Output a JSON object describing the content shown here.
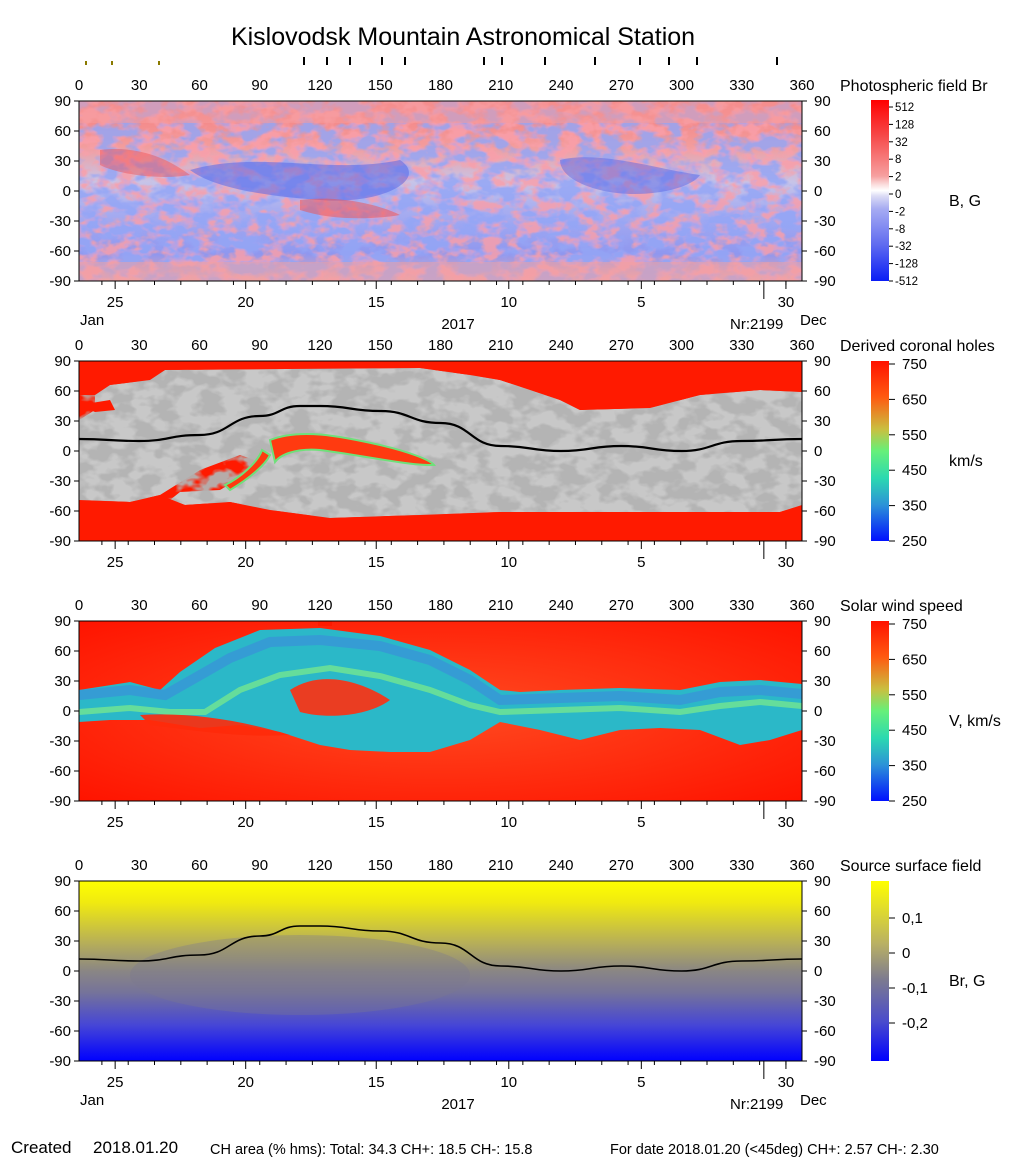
{
  "title": "Kislovodsk Mountain Astronomical Station",
  "footer": {
    "created_label": "Created",
    "created_date": "2018.01.20",
    "ch_area": "CH area (% hms): Total: 34.3 CH+: 18.5   CH-: 15.8",
    "for_date": "For date 2018.01.20 (<45deg) CH+: 2.57    CH-: 2.30"
  },
  "axes": {
    "longitude_ticks": [
      "0",
      "30",
      "60",
      "90",
      "120",
      "150",
      "180",
      "210",
      "240",
      "270",
      "300",
      "330",
      "360"
    ],
    "latitude_ticks": [
      "90",
      "60",
      "30",
      "0",
      "-30",
      "-60",
      "-90"
    ],
    "date_ticks": [
      "25",
      "20",
      "15",
      "10",
      "5",
      "30"
    ],
    "month_left": "Jan",
    "month_right": "Dec",
    "year": "2017",
    "rotation": "Nr:2199"
  },
  "colors": {
    "positive_field": "#f25b5b",
    "negative_field": "#6a78ee",
    "coronal_hole_fast": "#ff1a00",
    "coronal_hole_gray": "#8a8a8a",
    "wind_slow": "#3a9ad9",
    "source_positive": "#ffff00",
    "source_negative": "#0000ff",
    "neutral_line": "#000000"
  },
  "chart_data": [
    {
      "type": "heatmap",
      "panel": "Photospheric field Br",
      "colorbar_label": "B, G",
      "colorbar_ticks": [
        "512",
        "128",
        "32",
        "8",
        "2",
        "0",
        "-2",
        "-8",
        "-32",
        "-128",
        "-512"
      ],
      "xlim": [
        0,
        360
      ],
      "ylim": [
        -90,
        90
      ]
    },
    {
      "type": "heatmap",
      "panel": "Derived coronal holes",
      "colorbar_label": "km/s",
      "colorbar_ticks": [
        "750",
        "650",
        "550",
        "450",
        "350",
        "250"
      ],
      "xlim": [
        0,
        360
      ],
      "ylim": [
        -90,
        90
      ],
      "neutral_line": {
        "x": [
          0,
          30,
          60,
          90,
          110,
          120,
          150,
          180,
          210,
          240,
          270,
          300,
          330,
          360
        ],
        "y": [
          12,
          10,
          16,
          35,
          45,
          45,
          40,
          28,
          5,
          0,
          5,
          0,
          10,
          12
        ]
      }
    },
    {
      "type": "heatmap",
      "panel": "Solar wind speed",
      "colorbar_label": "V, km/s",
      "colorbar_ticks": [
        "750",
        "650",
        "550",
        "450",
        "350",
        "250"
      ],
      "xlim": [
        0,
        360
      ],
      "ylim": [
        -90,
        90
      ]
    },
    {
      "type": "heatmap",
      "panel": "Source surface field",
      "colorbar_label": "Br, G",
      "colorbar_ticks": [
        "0,1",
        "0",
        "-0,1",
        "-0,2"
      ],
      "xlim": [
        0,
        360
      ],
      "ylim": [
        -90,
        90
      ],
      "neutral_line": {
        "x": [
          0,
          30,
          60,
          90,
          110,
          120,
          150,
          180,
          210,
          240,
          270,
          300,
          330,
          360
        ],
        "y": [
          12,
          10,
          16,
          35,
          45,
          45,
          40,
          28,
          5,
          0,
          5,
          0,
          10,
          12
        ]
      }
    }
  ]
}
